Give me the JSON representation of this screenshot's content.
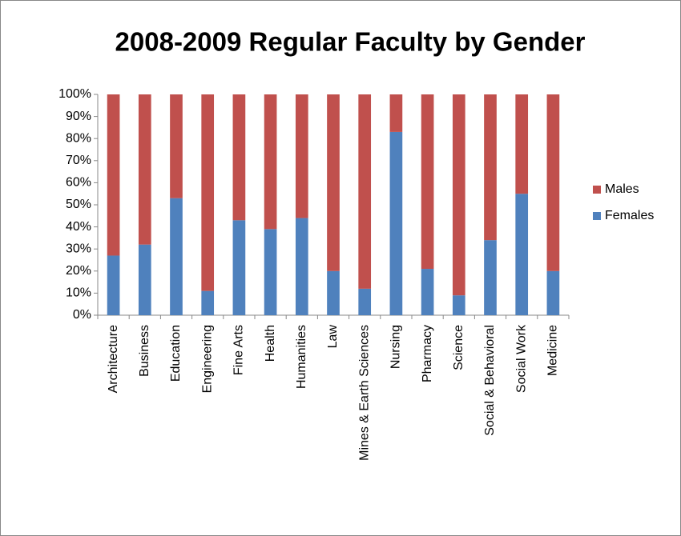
{
  "chart_data": {
    "type": "stacked_bar",
    "title": "2008-2009 Regular Faculty by Gender",
    "categories": [
      "Architecture",
      "Business",
      "Education",
      "Engineering",
      "Fine Arts",
      "Health",
      "Humanities",
      "Law",
      "Mines & Earth Sciences",
      "Nursing",
      "Pharmacy",
      "Science",
      "Social & Behavioral",
      "Social Work",
      "Medicine"
    ],
    "series": [
      {
        "name": "Females",
        "color": "#4f81bd",
        "values": [
          27,
          32,
          53,
          11,
          43,
          39,
          44,
          20,
          12,
          83,
          21,
          9,
          34,
          55,
          20
        ]
      },
      {
        "name": "Males",
        "color": "#c0504d",
        "values": [
          73,
          68,
          47,
          89,
          57,
          61,
          56,
          80,
          88,
          17,
          79,
          91,
          66,
          45,
          80
        ]
      }
    ],
    "ylim": [
      0,
      100
    ],
    "yticks": [
      {
        "value": 0,
        "label": "0%"
      },
      {
        "value": 10,
        "label": "10%"
      },
      {
        "value": 20,
        "label": "20%"
      },
      {
        "value": 30,
        "label": "30%"
      },
      {
        "value": 40,
        "label": "40%"
      },
      {
        "value": 50,
        "label": "50%"
      },
      {
        "value": 60,
        "label": "60%"
      },
      {
        "value": 70,
        "label": "70%"
      },
      {
        "value": 80,
        "label": "80%"
      },
      {
        "value": 90,
        "label": "90%"
      },
      {
        "value": 100,
        "label": "100%"
      }
    ],
    "grid": false,
    "legend": "right"
  }
}
